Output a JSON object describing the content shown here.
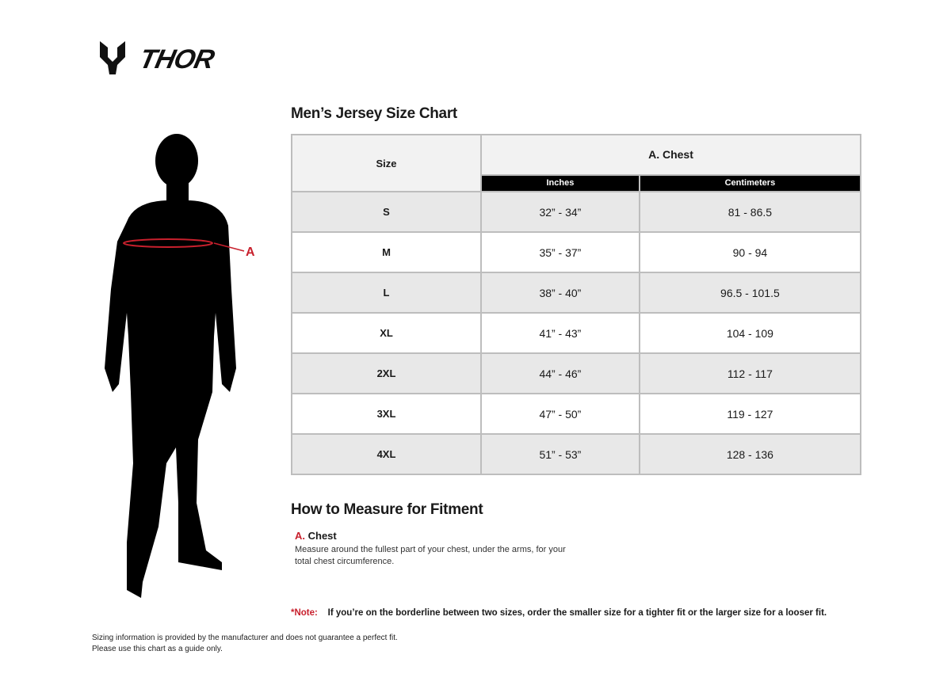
{
  "brand": {
    "logo_text": "THOR"
  },
  "size_chart": {
    "title": "Men’s Jersey Size Chart",
    "headers": {
      "size": "Size",
      "measure": "A. Chest",
      "inches": "Inches",
      "centimeters": "Centimeters"
    },
    "rows": [
      {
        "size": "S",
        "inches": "32” - 34”",
        "cm": "81 - 86.5"
      },
      {
        "size": "M",
        "inches": "35” - 37”",
        "cm": "90 - 94"
      },
      {
        "size": "L",
        "inches": "38” - 40”",
        "cm": "96.5 - 101.5"
      },
      {
        "size": "XL",
        "inches": "41” - 43”",
        "cm": "104 - 109"
      },
      {
        "size": "2XL",
        "inches": "44” - 46”",
        "cm": "112 - 117"
      },
      {
        "size": "3XL",
        "inches": "47” - 50”",
        "cm": "119 - 127"
      },
      {
        "size": "4XL",
        "inches": "51” - 53”",
        "cm": "128 - 136"
      }
    ]
  },
  "figure": {
    "marker_label": "A"
  },
  "how_to": {
    "title": "How to Measure for Fitment",
    "letter": "A.",
    "label": "Chest",
    "description": "Measure around the fullest part of your chest, under the arms, for your total chest circumference."
  },
  "note": {
    "label": "*Note:",
    "text": "If you’re on the borderline between two sizes, order the smaller size for a tighter fit or the larger size for a looser fit."
  },
  "disclaimer": {
    "line1": "Sizing information is provided by the manufacturer and does not guarantee a perfect fit.",
    "line2": "Please use this chart as a guide only."
  },
  "colors": {
    "accent": "#c8202d",
    "header_bg": "#000000",
    "row_shade": "#e8e8e8"
  }
}
